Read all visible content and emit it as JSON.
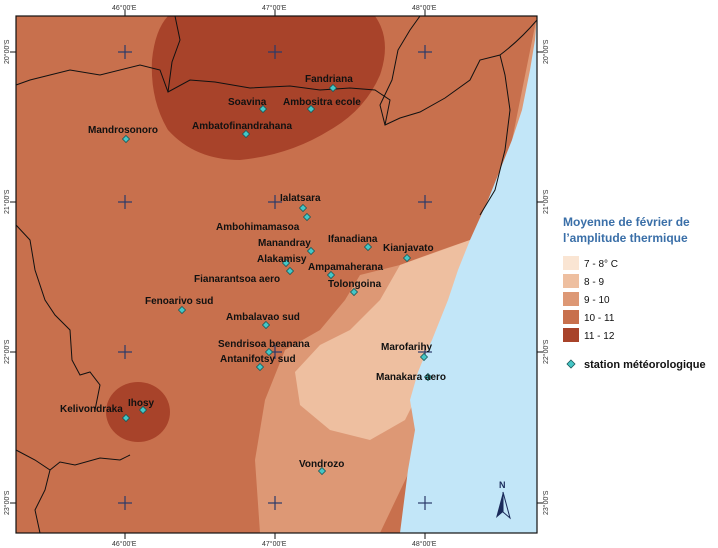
{
  "map": {
    "top_coords": [
      "46°00'E",
      "47°00'E",
      "48°00'E"
    ],
    "bottom_coords": [
      "46°00'E",
      "47°00'E",
      "48°00'E"
    ],
    "left_coords": [
      "20°00'S",
      "21°00'S",
      "22°00'S",
      "23°00'S"
    ],
    "right_coords": [
      "20°00'S",
      "21°00'S",
      "22°00'S",
      "23°00'S"
    ],
    "north_label": "N",
    "ocean_color": "#c2e6f8",
    "station_color": "#45c6c6"
  },
  "stations": [
    {
      "name": "Fandriana"
    },
    {
      "name": "Soavina"
    },
    {
      "name": "Ambositra ecole"
    },
    {
      "name": "Ambatofinandrahana"
    },
    {
      "name": "Mandrosonoro"
    },
    {
      "name": "Ialatsara"
    },
    {
      "name": "Ambohimamasoa"
    },
    {
      "name": "Ifanadiana"
    },
    {
      "name": "Manandray"
    },
    {
      "name": "Kianjavato"
    },
    {
      "name": "Alakamisy"
    },
    {
      "name": "Ampamaherana"
    },
    {
      "name": "Fianarantsoa aero"
    },
    {
      "name": "Tolongoina"
    },
    {
      "name": "Fenoarivo sud"
    },
    {
      "name": "Ambalavao sud"
    },
    {
      "name": "Sendrisoa beanana"
    },
    {
      "name": "Marofarihy"
    },
    {
      "name": "Antanifotsy sud"
    },
    {
      "name": "Manakara aero"
    },
    {
      "name": "Ihosy"
    },
    {
      "name": "Kelivondraka"
    },
    {
      "name": "Vondrozo"
    }
  ],
  "legend": {
    "title_line1": "Moyenne de février de",
    "title_line2": "l’amplitude thermique",
    "classes": [
      {
        "label": "7 - 8° C",
        "color": "#fae5d3"
      },
      {
        "label": "8 - 9",
        "color": "#eebfa0"
      },
      {
        "label": "9 - 10",
        "color": "#dd9875"
      },
      {
        "label": "10 - 11",
        "color": "#c8704d"
      },
      {
        "label": "11 - 12",
        "color": "#a8432a"
      }
    ],
    "station_label": "station météorologique"
  }
}
